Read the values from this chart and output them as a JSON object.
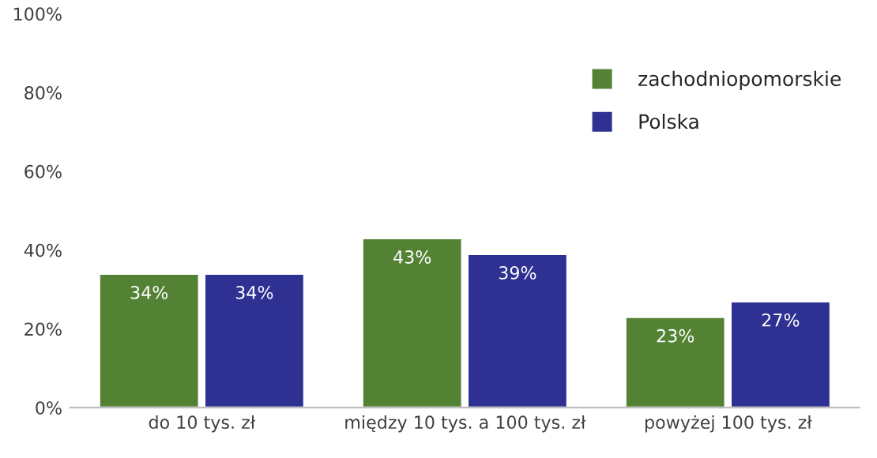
{
  "chart_data": {
    "type": "bar",
    "categories": [
      "do 10 tys. zł",
      "między 10 tys. a 100 tys. zł",
      "powyżej 100 tys. zł"
    ],
    "series": [
      {
        "name": "zachodniopomorskie",
        "color": "#548235",
        "values": [
          34,
          43,
          23
        ],
        "value_labels": [
          "34%",
          "43%",
          "23%"
        ]
      },
      {
        "name": "Polska",
        "color": "#2e3192",
        "values": [
          34,
          39,
          27
        ],
        "value_labels": [
          "34%",
          "39%",
          "27%"
        ]
      }
    ],
    "ylim": [
      0,
      100
    ],
    "yticks": [
      {
        "value": 0,
        "label": "0%"
      },
      {
        "value": 20,
        "label": "20%"
      },
      {
        "value": 40,
        "label": "40%"
      },
      {
        "value": 60,
        "label": "60%"
      },
      {
        "value": 80,
        "label": "80%"
      },
      {
        "value": 100,
        "label": "100%"
      }
    ],
    "grid": false,
    "legend": "top right"
  }
}
